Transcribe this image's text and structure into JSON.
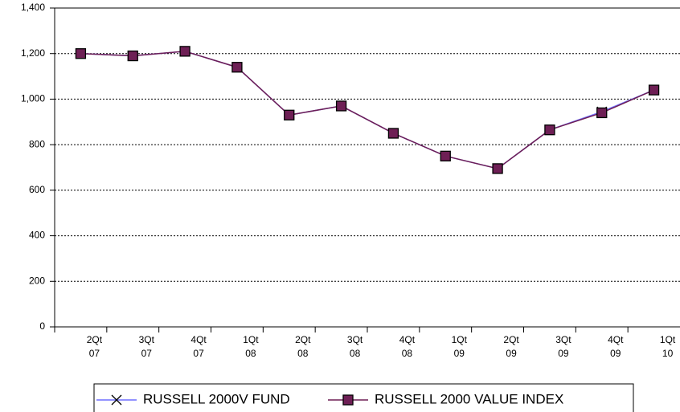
{
  "chart_data": {
    "type": "line",
    "categories": [
      [
        "2Qt",
        "07"
      ],
      [
        "3Qt",
        "07"
      ],
      [
        "4Qt",
        "07"
      ],
      [
        "1Qt",
        "08"
      ],
      [
        "2Qt",
        "08"
      ],
      [
        "3Qt",
        "08"
      ],
      [
        "4Qt",
        "08"
      ],
      [
        "1Qt",
        "09"
      ],
      [
        "2Qt",
        "09"
      ],
      [
        "3Qt",
        "09"
      ],
      [
        "4Qt",
        "09"
      ],
      [
        "1Qt",
        "10"
      ]
    ],
    "series": [
      {
        "name": "RUSSELL 2000V FUND",
        "color": "#6f6fff",
        "marker": "x",
        "values": [
          1200,
          1190,
          1210,
          1140,
          930,
          970,
          850,
          750,
          695,
          865,
          945,
          1040
        ]
      },
      {
        "name": "RUSSELL 2000 VALUE INDEX",
        "color": "#6e1f55",
        "marker": "square",
        "values": [
          1200,
          1190,
          1210,
          1140,
          930,
          970,
          850,
          750,
          695,
          865,
          940,
          1040
        ]
      }
    ],
    "ylim": [
      0,
      1400
    ],
    "yticks": [
      0,
      200,
      400,
      600,
      800,
      {
        "value": 1000,
        "label": "1,000"
      },
      {
        "value": 1200,
        "label": "1,200"
      },
      {
        "value": 1400,
        "label": "1,400"
      }
    ],
    "grid": true
  }
}
